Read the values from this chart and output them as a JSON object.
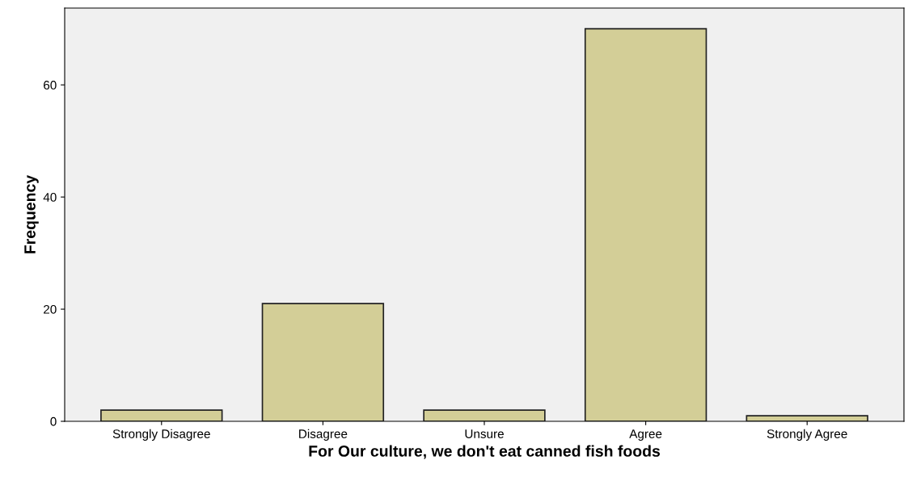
{
  "chart_data": {
    "type": "bar",
    "categories": [
      "Strongly Disagree",
      "Disagree",
      "Unsure",
      "Agree",
      "Strongly Agree"
    ],
    "values": [
      2,
      21,
      2,
      70,
      1
    ],
    "color": "#d3ce97",
    "xlabel": "For Our culture, we don't eat canned fish foods",
    "ylabel": "Frequency",
    "ylim": [
      0,
      73.7
    ],
    "yticks": [
      0,
      20,
      40,
      60
    ],
    "grid": false,
    "legend": false
  }
}
